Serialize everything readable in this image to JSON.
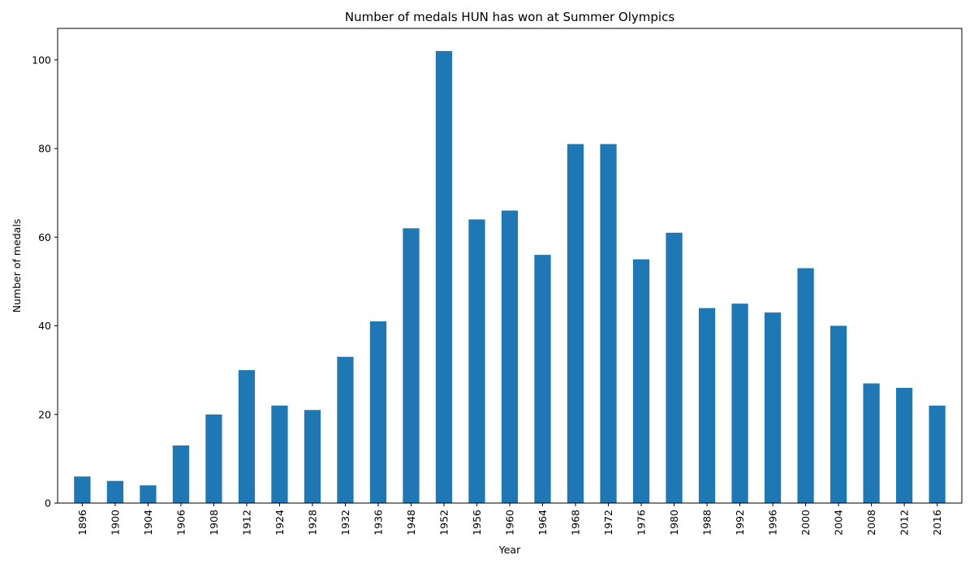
{
  "chart_data": {
    "type": "bar",
    "title": "Number of medals HUN has won at Summer Olympics",
    "xlabel": "Year",
    "ylabel": "Number of medals",
    "categories": [
      "1896",
      "1900",
      "1904",
      "1906",
      "1908",
      "1912",
      "1924",
      "1928",
      "1932",
      "1936",
      "1948",
      "1952",
      "1956",
      "1960",
      "1964",
      "1968",
      "1972",
      "1976",
      "1980",
      "1988",
      "1992",
      "1996",
      "2000",
      "2004",
      "2008",
      "2012",
      "2016"
    ],
    "values": [
      6,
      5,
      4,
      13,
      20,
      30,
      22,
      21,
      33,
      41,
      62,
      102,
      64,
      66,
      56,
      81,
      81,
      55,
      61,
      44,
      45,
      43,
      53,
      40,
      27,
      26,
      22
    ],
    "ylim": [
      0,
      107.1
    ],
    "yticks": [
      0,
      20,
      40,
      60,
      80,
      100
    ],
    "bar_color": "#1f77b4",
    "grid": false,
    "legend": "none"
  }
}
